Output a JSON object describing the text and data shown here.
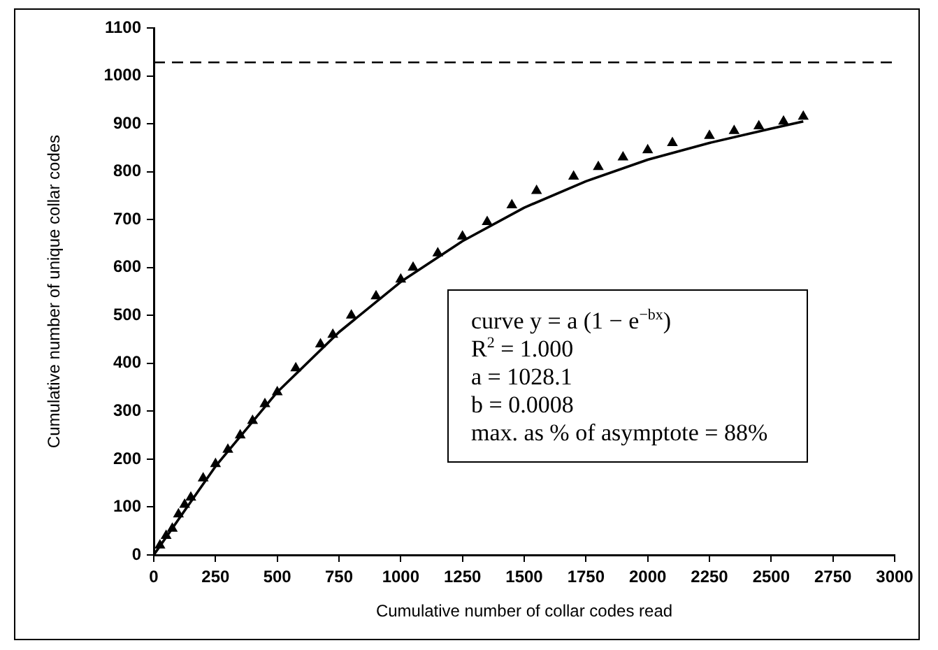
{
  "chart_data": {
    "type": "scatter",
    "xlabel": "Cumulative number of collar codes read",
    "ylabel": "Cumulative number of unique collar codes",
    "xlim": [
      0,
      3000
    ],
    "xticks": [
      0,
      250,
      500,
      750,
      1000,
      1250,
      1500,
      1750,
      2000,
      2250,
      2500,
      2750,
      3000
    ],
    "ylim": [
      0,
      1100
    ],
    "yticks": [
      0,
      100,
      200,
      300,
      400,
      500,
      600,
      700,
      800,
      900,
      1000,
      1100
    ],
    "grid": false,
    "marker": "triangle",
    "series": [
      {
        "color": "#000000",
        "x": [
          25,
          50,
          75,
          100,
          125,
          150,
          200,
          250,
          300,
          350,
          400,
          450,
          500,
          575,
          675,
          725,
          800,
          900,
          1000,
          1050,
          1150,
          1250,
          1350,
          1450,
          1550,
          1700,
          1800,
          1900,
          2000,
          2100,
          2250,
          2350,
          2450,
          2550,
          2630
        ],
        "values": [
          20,
          40,
          55,
          85,
          105,
          120,
          160,
          190,
          220,
          250,
          280,
          315,
          340,
          390,
          440,
          460,
          500,
          540,
          575,
          600,
          630,
          665,
          695,
          730,
          760,
          790,
          810,
          830,
          845,
          860,
          875,
          885,
          895,
          905,
          915
        ]
      },
      {
        "type": "line",
        "color": "#000000",
        "marker": "none",
        "line_style": "solid",
        "x": [
          0,
          250,
          500,
          750,
          1000,
          1250,
          1500,
          1750,
          2000,
          2250,
          2500,
          2630
        ],
        "values": [
          0,
          185,
          340,
          465,
          570,
          655,
          725,
          780,
          825,
          860,
          890,
          905
        ]
      }
    ],
    "ref_lines": [
      {
        "axis": "y",
        "value": 1028.1,
        "line_style": "dashed",
        "color": "#000000"
      }
    ],
    "annotations": [
      "curve y = a (1 − e$^{−bx}$)",
      "R$^{2}$ = 1.000",
      "a = 1028.1",
      "b = 0.0008",
      "max. as % of asymptote = 88%"
    ]
  }
}
